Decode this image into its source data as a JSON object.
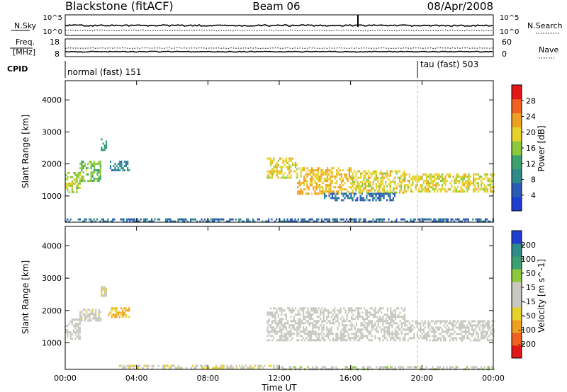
{
  "header": {
    "station": "Blackstone (fitACF)",
    "beam": "Beam 06",
    "date": "08/Apr/2008"
  },
  "noise_panel": {
    "left_label": "N.Sky",
    "right_label": "N.Search",
    "left_ticks": [
      "10^5",
      "10^0"
    ],
    "right_ticks": [
      "10^5",
      "10^0"
    ]
  },
  "freq_panel": {
    "left_label_line1": "Freq.",
    "left_label_line2": "[MHz]",
    "right_label": "Nave",
    "left_ticks": [
      "18",
      "8"
    ],
    "right_ticks": [
      "60",
      "0"
    ]
  },
  "cpid": {
    "label": "CPID",
    "segments": [
      {
        "text": "normal (fast) 151",
        "start_hour": 0
      },
      {
        "text": "tau (fast) 503",
        "start_hour": 20
      }
    ]
  },
  "colors": {
    "power_scale": [
      "#1e3fd2",
      "#2a5ab4",
      "#2f8a8a",
      "#3ca070",
      "#8cc83c",
      "#e6d22a",
      "#f0a020",
      "#f06020",
      "#e01818"
    ],
    "velocity_scale": [
      "#e01818",
      "#f06020",
      "#f0a020",
      "#e6d22a",
      "#c8c8c0",
      "#c8c8c0",
      "#8cc83c",
      "#3ca070",
      "#2f8a8a",
      "#1e3fd2"
    ],
    "ground_scatter": "#c8c8c0"
  },
  "chart_data": [
    {
      "type": "heatmap",
      "title": "",
      "xlabel": "Time UT",
      "ylabel": "Slant Range [km]",
      "xlim": [
        0,
        24
      ],
      "ylim": [
        180,
        4600
      ],
      "x_ticks": [
        "00:00",
        "04:00",
        "08:00",
        "12:00",
        "16:00",
        "20:00",
        "00:00"
      ],
      "y_ticks": [
        "1000",
        "2000",
        "3000",
        "4000"
      ],
      "colorbar_label": "Power [dB]",
      "colorbar_ticks": [
        "4",
        "8",
        "12",
        "16",
        "20",
        "24",
        "28"
      ],
      "colorbar_range": [
        0,
        30
      ],
      "bands": [
        {
          "t0": 0.0,
          "t1": 0.8,
          "r0": 1150,
          "r1": 1750,
          "level": 16
        },
        {
          "t0": 0.8,
          "t1": 2.0,
          "r0": 1500,
          "r1": 2100,
          "level": 14
        },
        {
          "t0": 2.0,
          "t1": 2.3,
          "r0": 2450,
          "r1": 2800,
          "level": 10
        },
        {
          "t0": 2.5,
          "t1": 3.6,
          "r0": 1800,
          "r1": 2100,
          "level": 8
        },
        {
          "t0": 11.3,
          "t1": 13.0,
          "r0": 1600,
          "r1": 2200,
          "level": 18
        },
        {
          "t0": 13.0,
          "t1": 16.0,
          "r0": 1100,
          "r1": 1900,
          "level": 20
        },
        {
          "t0": 16.0,
          "t1": 19.0,
          "r0": 1100,
          "r1": 1800,
          "level": 18
        },
        {
          "t0": 19.0,
          "t1": 24.0,
          "r0": 1150,
          "r1": 1700,
          "level": 18
        },
        {
          "t0": 14.5,
          "t1": 18.5,
          "r0": 850,
          "r1": 1100,
          "level": 6
        },
        {
          "t0": 0.0,
          "t1": 24.0,
          "r0": 200,
          "r1": 300,
          "level": 6
        }
      ]
    },
    {
      "type": "heatmap",
      "title": "",
      "xlabel": "Time UT",
      "ylabel": "Slant Range [km]",
      "xlim": [
        0,
        24
      ],
      "ylim": [
        180,
        4600
      ],
      "x_ticks": [
        "00:00",
        "04:00",
        "08:00",
        "12:00",
        "16:00",
        "20:00",
        "00:00"
      ],
      "y_ticks": [
        "1000",
        "2000",
        "3000",
        "4000"
      ],
      "colorbar_label": "Velocity [m s^-1]",
      "colorbar_ticks": [
        "200",
        "100",
        "50",
        "15",
        "-15",
        "-50",
        "-100",
        "-200"
      ],
      "colorbar_range": [
        -250,
        250
      ],
      "bands": [
        {
          "t0": 0.0,
          "t1": 0.8,
          "r0": 1150,
          "r1": 1750,
          "level": 0
        },
        {
          "t0": 0.8,
          "t1": 2.0,
          "r0": 1700,
          "r1": 2050,
          "level": -20
        },
        {
          "t0": 2.0,
          "t1": 2.3,
          "r0": 2450,
          "r1": 2750,
          "level": -40
        },
        {
          "t0": 2.4,
          "t1": 3.6,
          "r0": 1800,
          "r1": 2100,
          "level": -110
        },
        {
          "t0": 11.3,
          "t1": 19.0,
          "r0": 1100,
          "r1": 2100,
          "level": 0
        },
        {
          "t0": 19.0,
          "t1": 24.0,
          "r0": 1100,
          "r1": 1700,
          "level": 0
        },
        {
          "t0": 3.0,
          "t1": 12.0,
          "r0": 200,
          "r1": 320,
          "level": -40
        },
        {
          "t0": 12.0,
          "t1": 24.0,
          "r0": 200,
          "r1": 280,
          "level": 30
        }
      ]
    }
  ]
}
